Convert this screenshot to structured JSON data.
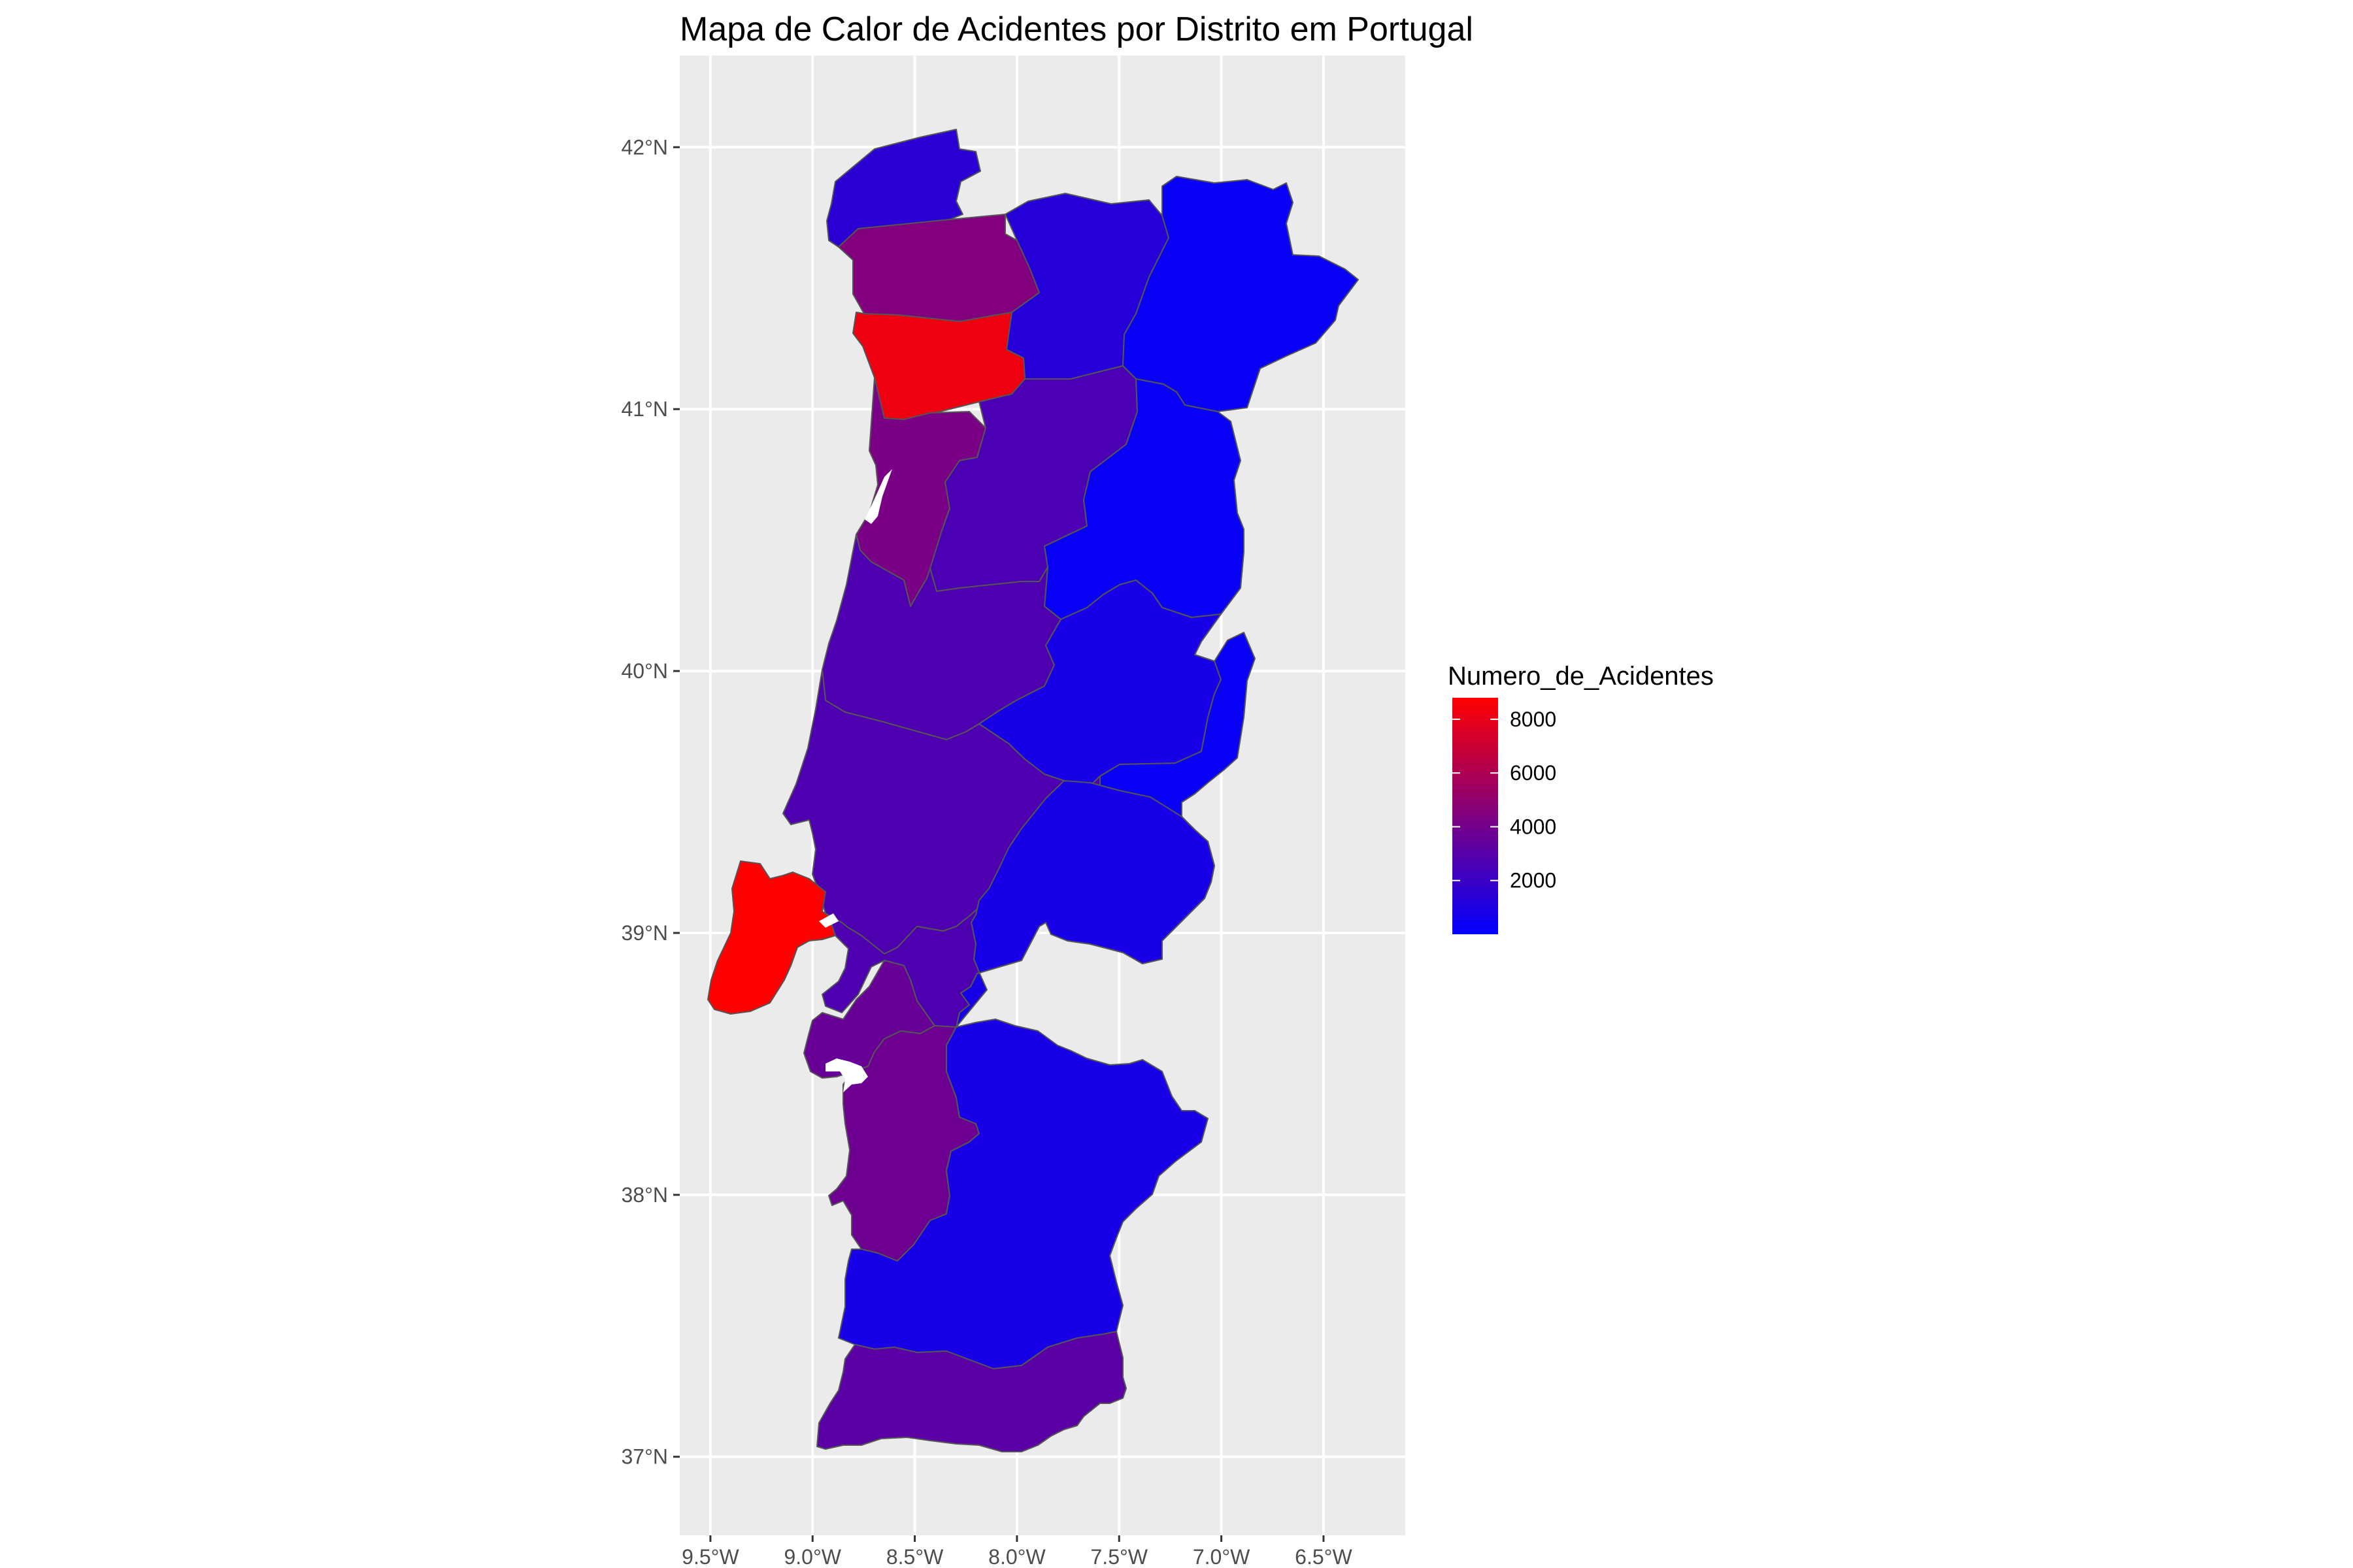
{
  "title": "Mapa de Calor de Acidentes por Distrito em Portugal",
  "chart_data": {
    "type": "choropleth",
    "title": "Mapa de Calor de Acidentes por Distrito em Portugal",
    "xlabel": "",
    "ylabel": "",
    "x_ticks": [
      "9.5°W",
      "9.0°W",
      "8.5°W",
      "8.0°W",
      "7.5°W",
      "7.0°W",
      "6.5°W"
    ],
    "x_tick_values": [
      -9.5,
      -9.0,
      -8.5,
      -8.0,
      -7.5,
      -7.0,
      -6.5
    ],
    "y_ticks": [
      "42°N",
      "41°N",
      "40°N",
      "39°N",
      "38°N",
      "37°N"
    ],
    "y_tick_values": [
      42,
      41,
      40,
      39,
      38,
      37
    ],
    "xlim": [
      -9.65,
      -6.1
    ],
    "ylim": [
      36.7,
      42.35
    ],
    "grid": true,
    "legend": {
      "title": "Numero_de_Acidentes",
      "placement": "right",
      "labels": [
        "8000",
        "6000",
        "4000",
        "2000"
      ],
      "breaks": [
        8000,
        6000,
        4000,
        2000
      ],
      "range": [
        0,
        8800
      ],
      "low_color": "#0000ff",
      "high_color": "#ff0000"
    },
    "colors": {
      "panel_background": "#ebebeb",
      "grid": "#ffffff",
      "border": "#555555"
    },
    "regions": [
      {
        "value": 1500
      },
      {
        "value": 4500
      },
      {
        "value": 1300
      },
      {
        "value": 300
      },
      {
        "value": 8200
      },
      {
        "value": 4200
      },
      {
        "value": 2600
      },
      {
        "value": 300
      },
      {
        "value": 2700
      },
      {
        "value": 800
      },
      {
        "value": 2700
      },
      {
        "value": 2700
      },
      {
        "value": 8800
      },
      {
        "value": 300
      },
      {
        "value": 3600
      },
      {
        "value": 800
      },
      {
        "value": 3800
      },
      {
        "value": 800
      },
      {
        "value": 3100
      }
    ]
  }
}
